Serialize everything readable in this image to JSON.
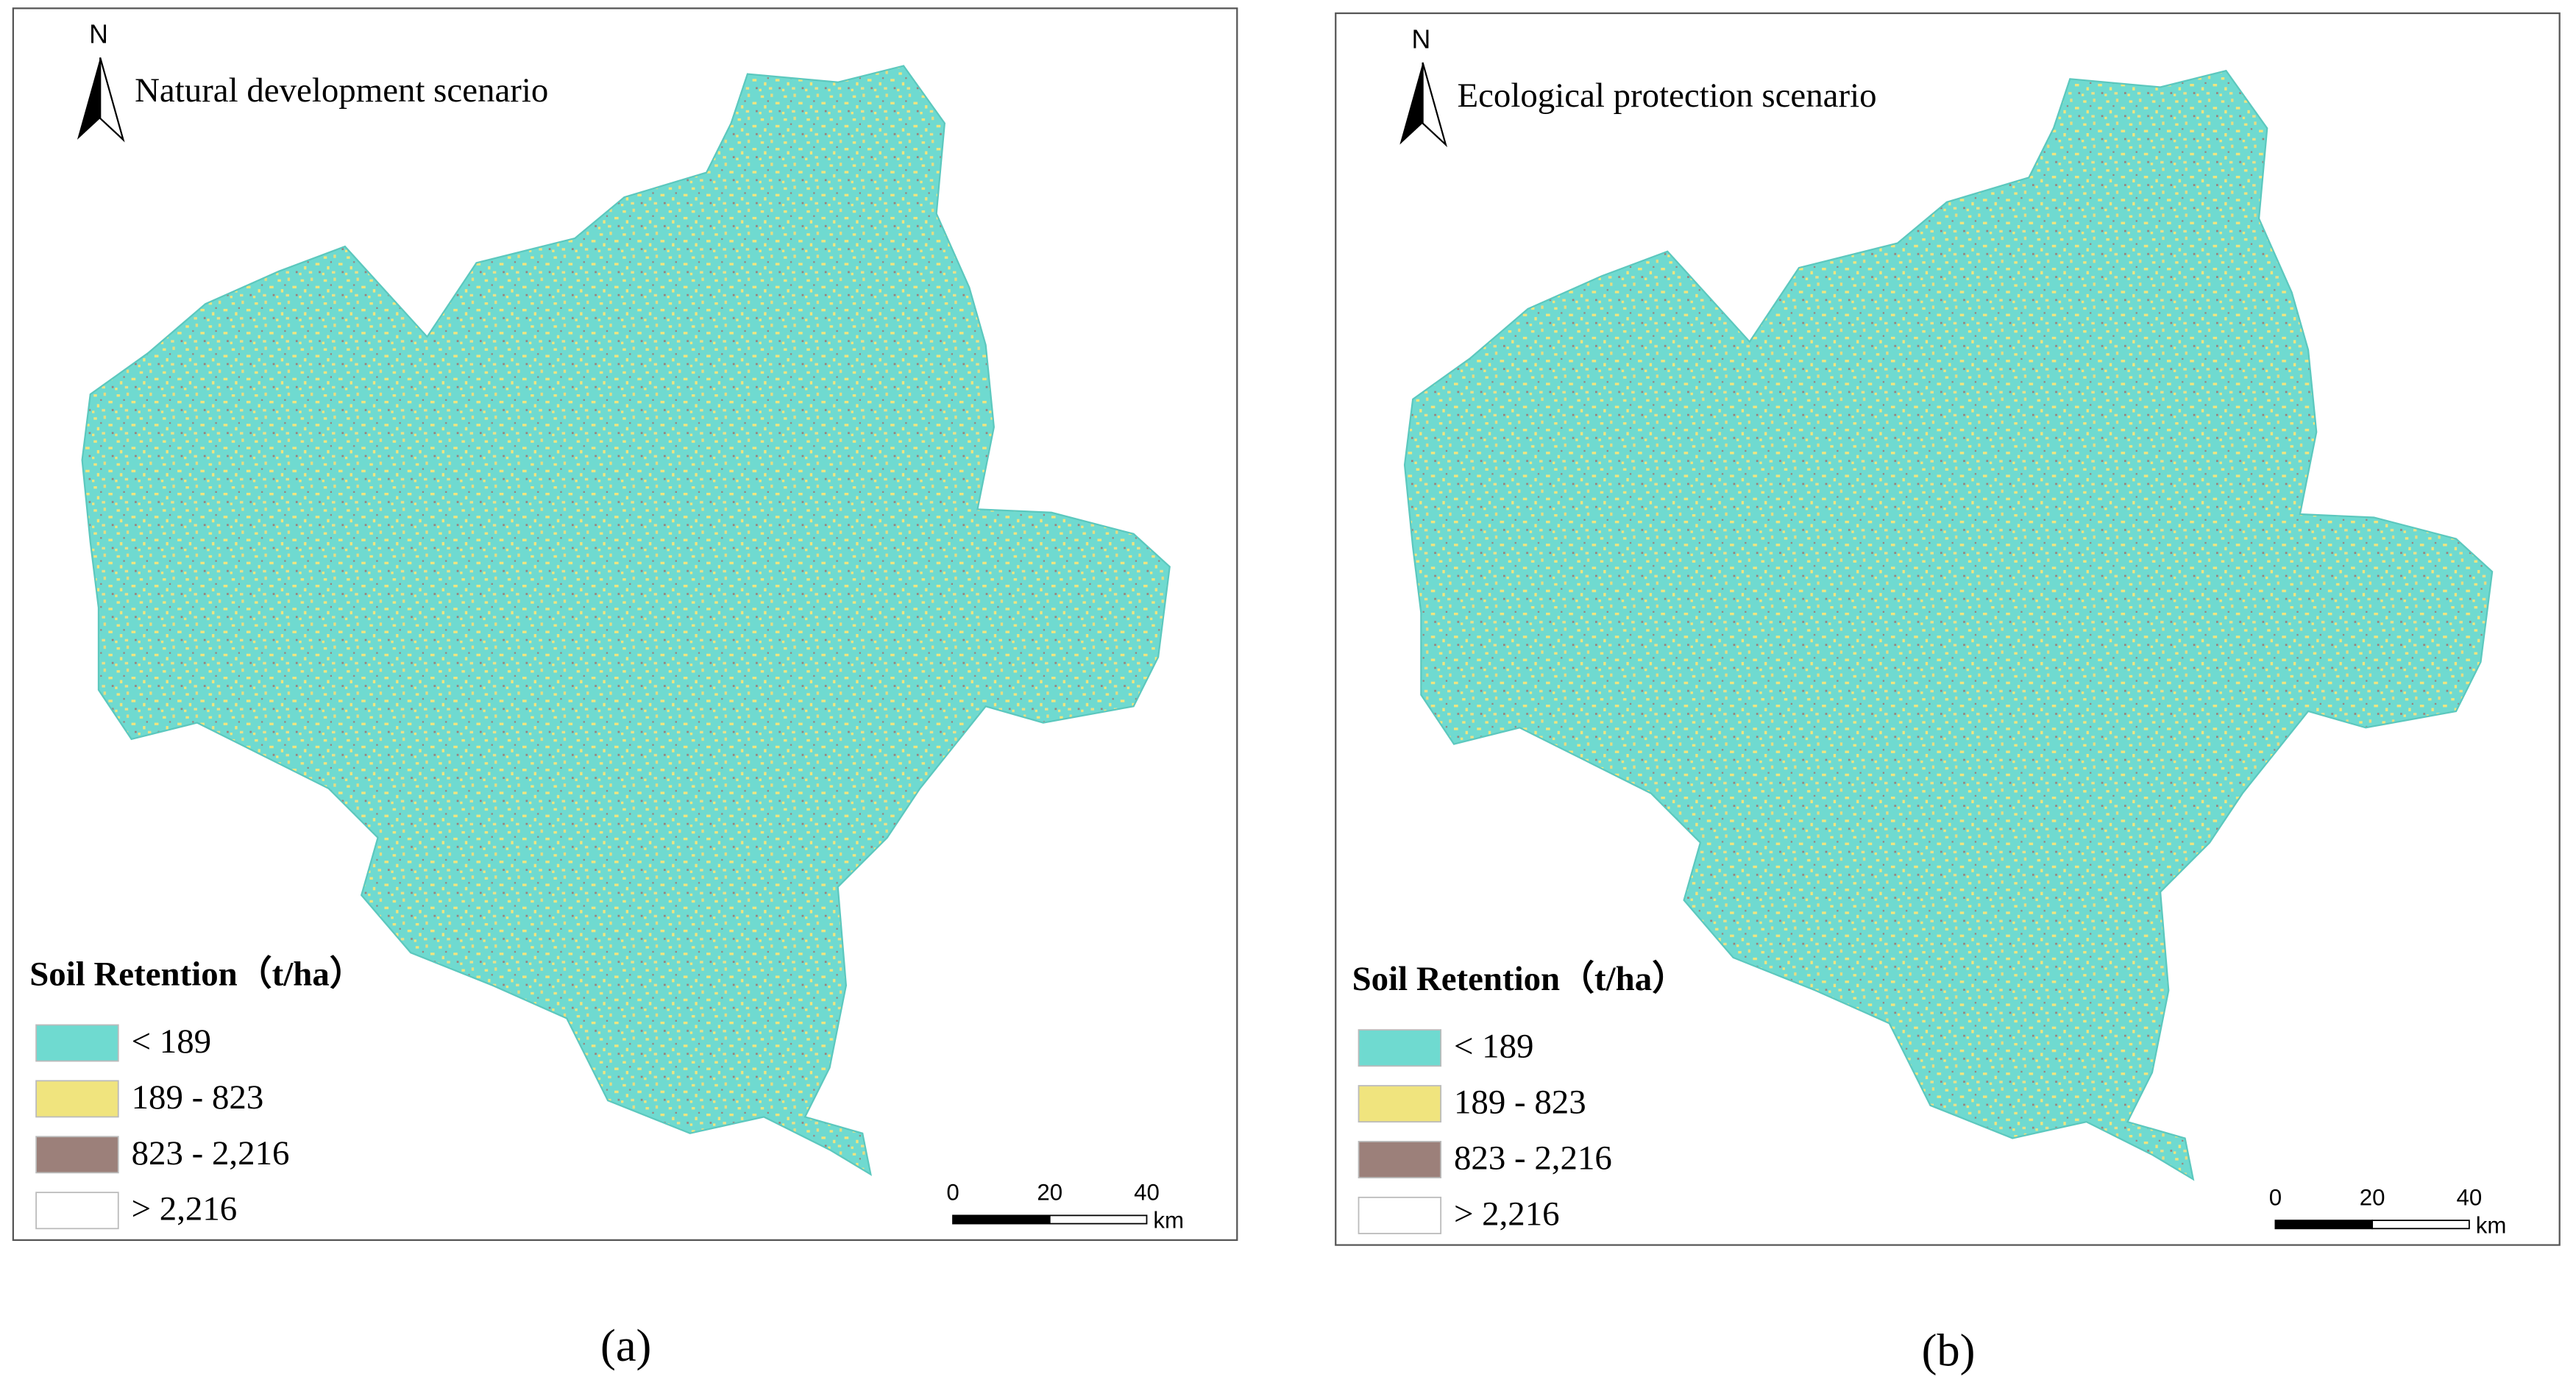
{
  "panels": [
    {
      "north": "N",
      "title": "Natural development scenario",
      "legend": {
        "title": "Soil Retention（t/ha）",
        "items": [
          {
            "label": "< 189",
            "color": "#6fdad0"
          },
          {
            "label": "189 - 823",
            "color": "#f0e47e"
          },
          {
            "label": "823 - 2,216",
            "color": "#9c807a"
          },
          {
            "label": "> 2,216",
            "color": "#ffffff"
          }
        ]
      },
      "scale_bar": {
        "ticks": [
          0,
          20,
          40
        ],
        "unit": "km"
      },
      "caption": "(a)"
    },
    {
      "north": "N",
      "title": "Ecological protection scenario",
      "legend": {
        "title": "Soil Retention（t/ha）",
        "items": [
          {
            "label": "< 189",
            "color": "#6fdad0"
          },
          {
            "label": "189 - 823",
            "color": "#f0e47e"
          },
          {
            "label": "823 - 2,216",
            "color": "#9c807a"
          },
          {
            "label": "> 2,216",
            "color": "#ffffff"
          }
        ]
      },
      "scale_bar": {
        "ticks": [
          0,
          20,
          40
        ],
        "unit": "km"
      },
      "caption": "(b)"
    }
  ]
}
